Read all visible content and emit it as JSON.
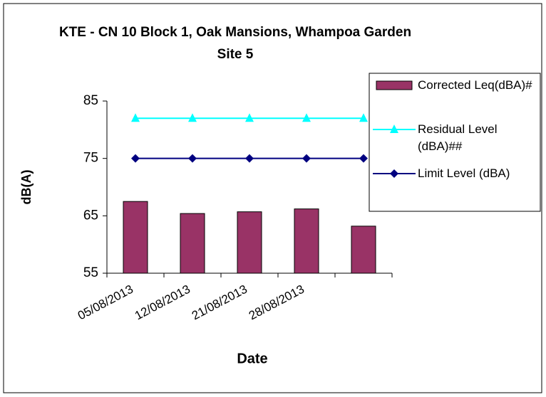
{
  "chart_data": {
    "type": "bar",
    "title": "KTE - CN 10 Block 1, Oak Mansions, Whampoa Garden Site 5",
    "x_label": "Date",
    "y_label": "dB(A)",
    "categories": [
      "05/08/2013",
      "12/08/2013",
      "21/08/2013",
      "28/08/2013",
      null
    ],
    "series": [
      {
        "name": "Corrected Leq(dBA)#",
        "type": "bar",
        "color": "#993366",
        "values": [
          67.5,
          65.4,
          65.7,
          66.2,
          63.2
        ]
      },
      {
        "name": "Residual Level (dBA)##",
        "type": "line",
        "marker": "triangle",
        "color": "#00ffff",
        "values": [
          82,
          82,
          82,
          82,
          82
        ]
      },
      {
        "name": "Limit Level (dBA)",
        "type": "line",
        "marker": "diamond",
        "color": "#000080",
        "values": [
          75,
          75,
          75,
          75,
          75
        ]
      }
    ],
    "ylim": [
      55,
      85
    ],
    "yticks": [
      55,
      65,
      75,
      85
    ],
    "grid": false,
    "legend": "right"
  }
}
